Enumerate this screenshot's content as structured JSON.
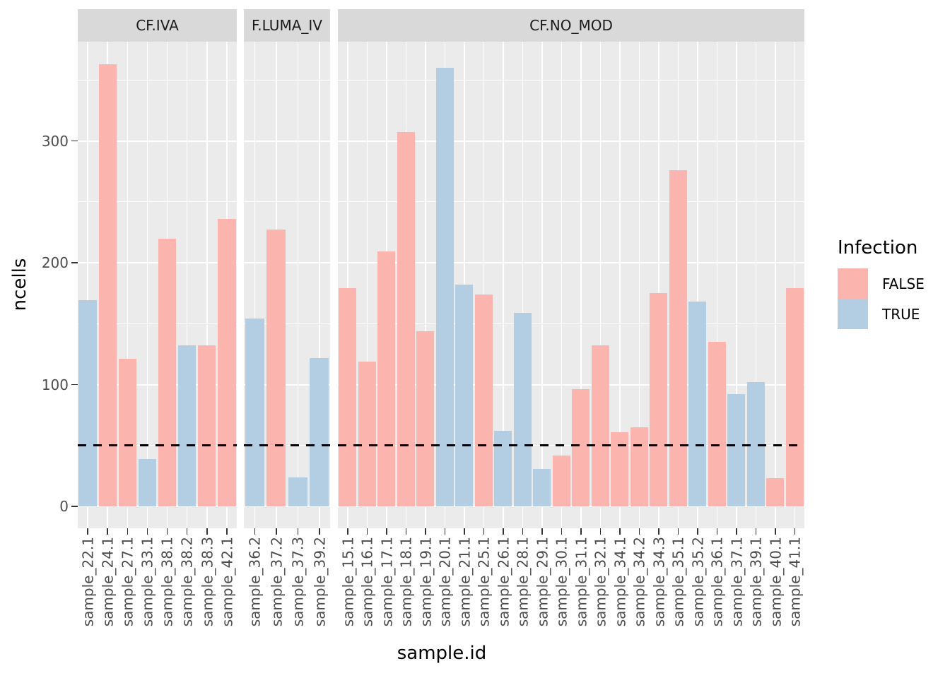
{
  "chart_data": {
    "type": "bar",
    "xlabel": "sample.id",
    "ylabel": "ncells",
    "ylim": [
      0,
      381
    ],
    "y_ticks": [
      0,
      100,
      200,
      300
    ],
    "y_minor_gridlines": [
      50,
      150,
      250,
      350
    ],
    "grid": "on",
    "hline": {
      "y": 50,
      "style": "dashed",
      "color": "#000000"
    },
    "colors": {
      "FALSE": "#FBB4AE",
      "TRUE": "#B3CDE3",
      "panel_bg": "#EBEBEB",
      "strip_bg": "#D9D9D9",
      "gridline": "#FFFFFF",
      "axis_text": "#4D4D4D",
      "tick_mark": "#333333"
    },
    "legend": {
      "title": "Infection",
      "position": "right",
      "entries": [
        {
          "label": "FALSE",
          "color": "#FBB4AE"
        },
        {
          "label": "TRUE",
          "color": "#B3CDE3"
        }
      ]
    },
    "facets": [
      {
        "label": "CF.IVA",
        "bars": [
          {
            "id": "sample_22.1",
            "infection": "TRUE",
            "ncells": 169
          },
          {
            "id": "sample_24.1",
            "infection": "FALSE",
            "ncells": 363
          },
          {
            "id": "sample_27.1",
            "infection": "FALSE",
            "ncells": 121
          },
          {
            "id": "sample_33.1",
            "infection": "TRUE",
            "ncells": 39
          },
          {
            "id": "sample_38.1",
            "infection": "FALSE",
            "ncells": 220
          },
          {
            "id": "sample_38.2",
            "infection": "TRUE",
            "ncells": 132
          },
          {
            "id": "sample_38.3",
            "infection": "FALSE",
            "ncells": 132
          },
          {
            "id": "sample_42.1",
            "infection": "FALSE",
            "ncells": 236
          }
        ]
      },
      {
        "label": "F.LUMA_IV",
        "bars": [
          {
            "id": "sample_36.2",
            "infection": "TRUE",
            "ncells": 154
          },
          {
            "id": "sample_37.2",
            "infection": "FALSE",
            "ncells": 227
          },
          {
            "id": "sample_37.3",
            "infection": "TRUE",
            "ncells": 24
          },
          {
            "id": "sample_39.2",
            "infection": "TRUE",
            "ncells": 122
          }
        ]
      },
      {
        "label": "CF.NO_MOD",
        "bars": [
          {
            "id": "sample_15.1",
            "infection": "FALSE",
            "ncells": 179
          },
          {
            "id": "sample_16.1",
            "infection": "FALSE",
            "ncells": 119
          },
          {
            "id": "sample_17.1",
            "infection": "FALSE",
            "ncells": 209
          },
          {
            "id": "sample_18.1",
            "infection": "FALSE",
            "ncells": 307
          },
          {
            "id": "sample_19.1",
            "infection": "FALSE",
            "ncells": 144
          },
          {
            "id": "sample_20.1",
            "infection": "TRUE",
            "ncells": 360
          },
          {
            "id": "sample_21.1",
            "infection": "TRUE",
            "ncells": 182
          },
          {
            "id": "sample_25.1",
            "infection": "FALSE",
            "ncells": 174
          },
          {
            "id": "sample_26.1",
            "infection": "TRUE",
            "ncells": 62
          },
          {
            "id": "sample_28.1",
            "infection": "TRUE",
            "ncells": 159
          },
          {
            "id": "sample_29.1",
            "infection": "TRUE",
            "ncells": 31
          },
          {
            "id": "sample_30.1",
            "infection": "FALSE",
            "ncells": 42
          },
          {
            "id": "sample_31.1",
            "infection": "FALSE",
            "ncells": 96
          },
          {
            "id": "sample_32.1",
            "infection": "FALSE",
            "ncells": 132
          },
          {
            "id": "sample_34.1",
            "infection": "FALSE",
            "ncells": 61
          },
          {
            "id": "sample_34.2",
            "infection": "FALSE",
            "ncells": 65
          },
          {
            "id": "sample_34.3",
            "infection": "FALSE",
            "ncells": 175
          },
          {
            "id": "sample_35.1",
            "infection": "FALSE",
            "ncells": 276
          },
          {
            "id": "sample_35.2",
            "infection": "TRUE",
            "ncells": 168
          },
          {
            "id": "sample_36.1",
            "infection": "FALSE",
            "ncells": 135
          },
          {
            "id": "sample_37.1",
            "infection": "TRUE",
            "ncells": 92
          },
          {
            "id": "sample_39.1",
            "infection": "TRUE",
            "ncells": 102
          },
          {
            "id": "sample_40.1",
            "infection": "FALSE",
            "ncells": 23
          },
          {
            "id": "sample_41.1",
            "infection": "FALSE",
            "ncells": 179
          }
        ]
      }
    ]
  }
}
